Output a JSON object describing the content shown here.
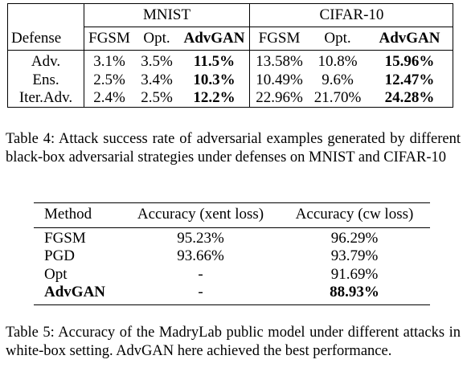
{
  "table4": {
    "group_headers": [
      "MNIST",
      "CIFAR-10"
    ],
    "columns": [
      "Defense",
      "FGSM",
      "Opt.",
      "AdvGAN",
      "FGSM",
      "Opt.",
      "AdvGAN"
    ],
    "rows": [
      {
        "defense": "Adv.",
        "mnist": [
          "3.1%",
          "3.5%",
          "11.5%"
        ],
        "cifar": [
          "13.58%",
          "10.8%",
          "15.96%"
        ]
      },
      {
        "defense": "Ens.",
        "mnist": [
          "2.5%",
          "3.4%",
          "10.3%"
        ],
        "cifar": [
          "10.49%",
          "9.6%",
          "12.47%"
        ]
      },
      {
        "defense": "Iter.Adv.",
        "mnist": [
          "2.4%",
          "2.5%",
          "12.2%"
        ],
        "cifar": [
          "22.96%",
          "21.70%",
          "24.28%"
        ]
      }
    ],
    "caption": "Table 4: Attack success rate of adversarial examples generated by different black-box adversarial strategies under defenses on MNIST and CIFAR-10"
  },
  "table5": {
    "columns": [
      "Method",
      "Accuracy (xent loss)",
      "Accuracy (cw loss)"
    ],
    "rows": [
      {
        "method": "FGSM",
        "xent": "95.23%",
        "cw": "96.29%"
      },
      {
        "method": "PGD",
        "xent": "93.66%",
        "cw": "93.79%"
      },
      {
        "method": "Opt",
        "xent": "-",
        "cw": "91.69%"
      },
      {
        "method": "AdvGAN",
        "xent": "-",
        "cw": "88.93%"
      }
    ],
    "caption": "Table 5: Accuracy of the MadryLab public model under different attacks in white-box setting. AdvGAN here achieved the best performance."
  }
}
